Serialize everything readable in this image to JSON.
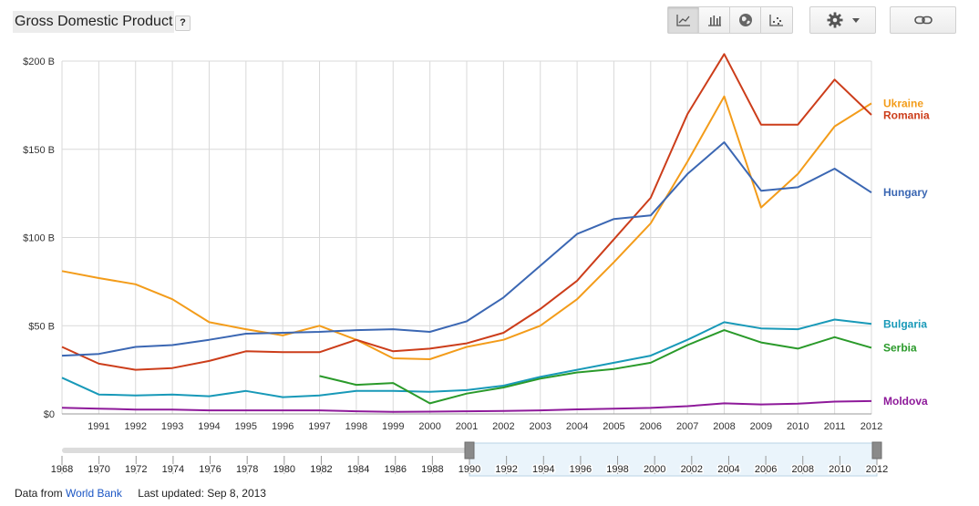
{
  "header": {
    "title": "Gross Domestic Product",
    "help_label": "?",
    "view_icons": [
      "line-chart-icon",
      "bar-chart-icon",
      "map-globe-icon",
      "scatter-plot-icon"
    ],
    "settings_icon": "gear-icon",
    "link_icon": "link-icon"
  },
  "footer": {
    "source_prefix": "Data from",
    "source_link": "World Bank",
    "updated": "Last updated: Sep 8, 2013"
  },
  "chart_data": {
    "type": "line",
    "ylim": [
      0,
      200
    ],
    "yticks": [
      {
        "value": 0,
        "label": "$0"
      },
      {
        "value": 50,
        "label": "$50 B"
      },
      {
        "value": 100,
        "label": "$100 B"
      },
      {
        "value": 150,
        "label": "$150 B"
      },
      {
        "value": 200,
        "label": "$200 B"
      }
    ],
    "x": [
      1990,
      1991,
      1992,
      1993,
      1994,
      1995,
      1996,
      1997,
      1998,
      1999,
      2000,
      2001,
      2002,
      2003,
      2004,
      2005,
      2006,
      2007,
      2008,
      2009,
      2010,
      2011,
      2012
    ],
    "xtick_labels": [
      "1991",
      "1992",
      "1993",
      "1994",
      "1995",
      "1996",
      "1997",
      "1998",
      "1999",
      "2000",
      "2001",
      "2002",
      "2003",
      "2004",
      "2005",
      "2006",
      "2007",
      "2008",
      "2009",
      "2010",
      "2011",
      "2012"
    ],
    "series": [
      {
        "name": "Ukraine",
        "color": "#f39c1a",
        "values": [
          81,
          77,
          73.5,
          65,
          52,
          48,
          44.5,
          50,
          42,
          31.5,
          31,
          38,
          42,
          50,
          65,
          86,
          108,
          143,
          180,
          117,
          136,
          163,
          176
        ]
      },
      {
        "name": "Romania",
        "color": "#cc3d1a",
        "values": [
          38,
          28.5,
          25,
          26,
          30,
          35.5,
          35,
          35,
          42,
          35.5,
          37,
          40,
          46,
          59.5,
          75.5,
          99,
          122.5,
          170,
          204,
          164,
          164,
          189.5,
          169.5
        ]
      },
      {
        "name": "Hungary",
        "color": "#3b67b3",
        "values": [
          33,
          34,
          38,
          39,
          42,
          45.5,
          46,
          46.5,
          47.5,
          48,
          46.5,
          52.5,
          66,
          84,
          102,
          110.5,
          112.5,
          136,
          154,
          126.5,
          128.5,
          139,
          125.5
        ]
      },
      {
        "name": "Bulgaria",
        "color": "#1899b8",
        "values": [
          20.5,
          11,
          10.5,
          11,
          10,
          13,
          9.5,
          10.5,
          13,
          13,
          12.5,
          13.5,
          16,
          21,
          25,
          29,
          33,
          42,
          52,
          48.5,
          48,
          53.5,
          51
        ]
      },
      {
        "name": "Serbia",
        "color": "#2a9a2a",
        "values": [
          null,
          null,
          null,
          null,
          null,
          null,
          null,
          21.5,
          16.5,
          17.5,
          6,
          11.5,
          15,
          20,
          23.5,
          25.5,
          29,
          39,
          47.5,
          40.5,
          37,
          43.5,
          37.5
        ]
      },
      {
        "name": "Moldova",
        "color": "#8e1a9a",
        "values": [
          3.5,
          3,
          2.5,
          2.5,
          2,
          2,
          2,
          2,
          1.5,
          1.2,
          1.3,
          1.5,
          1.7,
          2,
          2.6,
          3,
          3.4,
          4.4,
          6,
          5.4,
          5.8,
          7,
          7.3
        ]
      }
    ],
    "range_selector": {
      "full_range_labels": [
        "1968",
        "1970",
        "1972",
        "1974",
        "1976",
        "1978",
        "1980",
        "1982",
        "1984",
        "1986",
        "1988",
        "1990",
        "1992",
        "1994",
        "1996",
        "1998",
        "2000",
        "2002",
        "2004",
        "2006",
        "2008",
        "2010",
        "2012"
      ],
      "full_range": [
        1968,
        2012
      ],
      "selected": [
        1990,
        2012
      ]
    }
  }
}
